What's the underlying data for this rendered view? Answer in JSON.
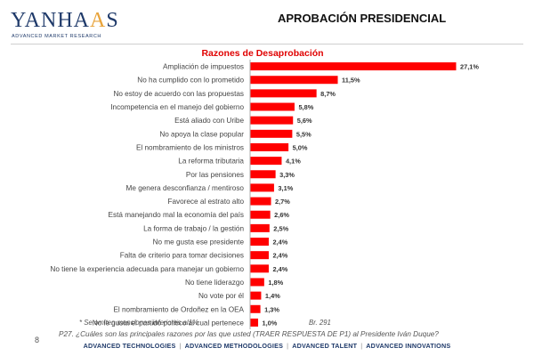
{
  "header": {
    "logo_main": "YANHA",
    "logo_accent": "A",
    "logo_end": "S",
    "logo_tagline": "ADVANCED MARKET RESEARCH",
    "title": "APROBACIÓN PRESIDENCIAL"
  },
  "colors": {
    "bar": "#ff0000",
    "title_red": "#e00000",
    "brand_blue": "#1f3a6a",
    "brand_gold": "#e8a33a"
  },
  "chart_data": {
    "type": "bar",
    "orientation": "horizontal",
    "title": "Razones de Desaprobación",
    "unit": "%",
    "categories": [
      "Ampliación de impuestos",
      "No ha cumplido con lo prometido",
      "No estoy de acuerdo con las propuestas",
      "Incompetencia en el manejo del gobierno",
      "Está aliado con Uribe",
      "No apoya la clase popular",
      "El nombramiento de los ministros",
      "La reforma tributaria",
      "Por las pensiones",
      "Me genera desconfianza / mentiroso",
      "Favorece al estrato alto",
      "Está manejando mal  la economía del país",
      "La forma de trabajo / la gestión",
      "No me gusta ese presidente",
      "Falta de criterio para tomar decisiones",
      "No tiene la experiencia adecuada para manejar un gobierno",
      "No tiene liderazgo",
      "No vote por él",
      "El nombramiento de Ordoñez en la OEA",
      "No le gusta el partido político al cual pertenece"
    ],
    "values": [
      27.1,
      11.5,
      8.7,
      5.8,
      5.6,
      5.5,
      5.0,
      4.1,
      3.3,
      3.1,
      2.7,
      2.6,
      2.5,
      2.4,
      2.4,
      2.4,
      1.8,
      1.4,
      1.3,
      1.0
    ],
    "value_labels": [
      "27,1%",
      "11,5%",
      "8,7%",
      "5,8%",
      "5,6%",
      "5,5%",
      "5,0%",
      "4,1%",
      "3,3%",
      "3,1%",
      "2,7%",
      "2,6%",
      "2,5%",
      "2,4%",
      "2,4%",
      "2,4%",
      "1,8%",
      "1,4%",
      "1,3%",
      "1,0%"
    ],
    "xlim": [
      0,
      27.1
    ]
  },
  "footer": {
    "note": "* Se omiten menciones inferiores al1%",
    "base": "Br. 291",
    "question": "P27. ¿Cuáles son las principales razones por las que usted (TRAER RESPUESTA DE P1) al Presidente Iván Duque?",
    "page_number": "8",
    "links": [
      "ADVANCED TECHNOLOGIES",
      "ADVANCED METHODOLOGIES",
      "ADVANCED TALENT",
      "ADVANCED INNOVATIONS"
    ],
    "separator": "|"
  }
}
